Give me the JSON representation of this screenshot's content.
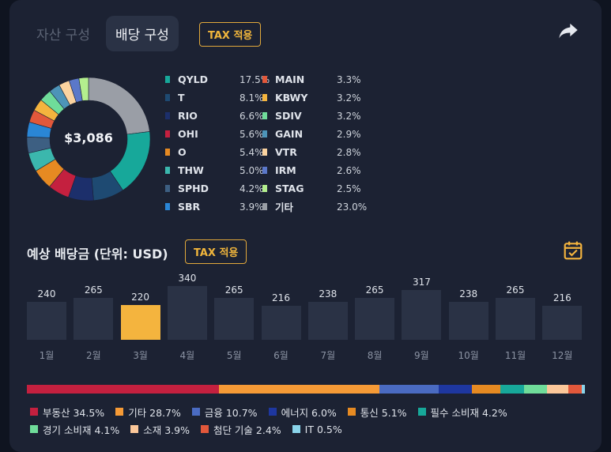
{
  "tabs": [
    {
      "label": "자산 구성",
      "active": false
    },
    {
      "label": "배당 구성",
      "active": true
    }
  ],
  "tax_badge": "TAX 적용",
  "icons": {
    "share": "share-arrow-icon",
    "calendar": "calendar-check-icon"
  },
  "donut": {
    "center_label": "$3,086",
    "holdings": [
      {
        "name": "QYLD",
        "pct": "17.5%",
        "value": 17.5,
        "color": "#17a89a"
      },
      {
        "name": "T",
        "pct": "8.1%",
        "value": 8.1,
        "color": "#1e4a72"
      },
      {
        "name": "RIO",
        "pct": "6.6%",
        "value": 6.6,
        "color": "#1c2f6b"
      },
      {
        "name": "OHI",
        "pct": "5.6%",
        "value": 5.6,
        "color": "#c4203f"
      },
      {
        "name": "O",
        "pct": "5.4%",
        "value": 5.4,
        "color": "#e68a22"
      },
      {
        "name": "THW",
        "pct": "5.0%",
        "value": 5.0,
        "color": "#3bb7ad"
      },
      {
        "name": "SPHD",
        "pct": "4.2%",
        "value": 4.2,
        "color": "#3d5f82"
      },
      {
        "name": "SBR",
        "pct": "3.9%",
        "value": 3.9,
        "color": "#2a86d6"
      },
      {
        "name": "MAIN",
        "pct": "3.3%",
        "value": 3.3,
        "color": "#e2583b"
      },
      {
        "name": "KBWY",
        "pct": "3.2%",
        "value": 3.2,
        "color": "#f4b43e"
      },
      {
        "name": "SDIV",
        "pct": "3.2%",
        "value": 3.2,
        "color": "#6fdc9a"
      },
      {
        "name": "GAIN",
        "pct": "2.9%",
        "value": 2.9,
        "color": "#4d94b8"
      },
      {
        "name": "VTR",
        "pct": "2.8%",
        "value": 2.8,
        "color": "#fbd3a0"
      },
      {
        "name": "IRM",
        "pct": "2.6%",
        "value": 2.6,
        "color": "#5b78c9"
      },
      {
        "name": "STAG",
        "pct": "2.5%",
        "value": 2.5,
        "color": "#b3ee8e"
      },
      {
        "name": "기타",
        "pct": "23.0%",
        "value": 23.0,
        "color": "#9a9ea6"
      }
    ]
  },
  "dividends": {
    "title": "예상 배당금 (단위: USD)",
    "selected_index": 2,
    "months": [
      {
        "label": "1월",
        "value": 240
      },
      {
        "label": "2월",
        "value": 265
      },
      {
        "label": "3월",
        "value": 220
      },
      {
        "label": "4월",
        "value": 340
      },
      {
        "label": "5월",
        "value": 265
      },
      {
        "label": "6월",
        "value": 216
      },
      {
        "label": "7월",
        "value": 238
      },
      {
        "label": "8월",
        "value": 265
      },
      {
        "label": "9월",
        "value": 317
      },
      {
        "label": "10월",
        "value": 238
      },
      {
        "label": "11월",
        "value": 265
      },
      {
        "label": "12월",
        "value": 216
      }
    ]
  },
  "sectors": [
    {
      "name": "부동산",
      "pct": "34.5%",
      "value": 34.5,
      "color": "#c4203f"
    },
    {
      "name": "기타",
      "pct": "28.7%",
      "value": 28.7,
      "color": "#f59a36"
    },
    {
      "name": "금융",
      "pct": "10.7%",
      "value": 10.7,
      "color": "#4a6bc2"
    },
    {
      "name": "에너지",
      "pct": "6.0%",
      "value": 6.0,
      "color": "#1e37a0"
    },
    {
      "name": "통신",
      "pct": "5.1%",
      "value": 5.1,
      "color": "#e68a22"
    },
    {
      "name": "필수 소비재",
      "pct": "4.2%",
      "value": 4.2,
      "color": "#17a89a"
    },
    {
      "name": "경기 소비재",
      "pct": "4.1%",
      "value": 4.1,
      "color": "#6fdc9a"
    },
    {
      "name": "소재",
      "pct": "3.9%",
      "value": 3.9,
      "color": "#fbc79a"
    },
    {
      "name": "첨단 기술",
      "pct": "2.4%",
      "value": 2.4,
      "color": "#e2583b"
    },
    {
      "name": "IT",
      "pct": "0.5%",
      "value": 0.5,
      "color": "#8ad4ea"
    }
  ]
}
